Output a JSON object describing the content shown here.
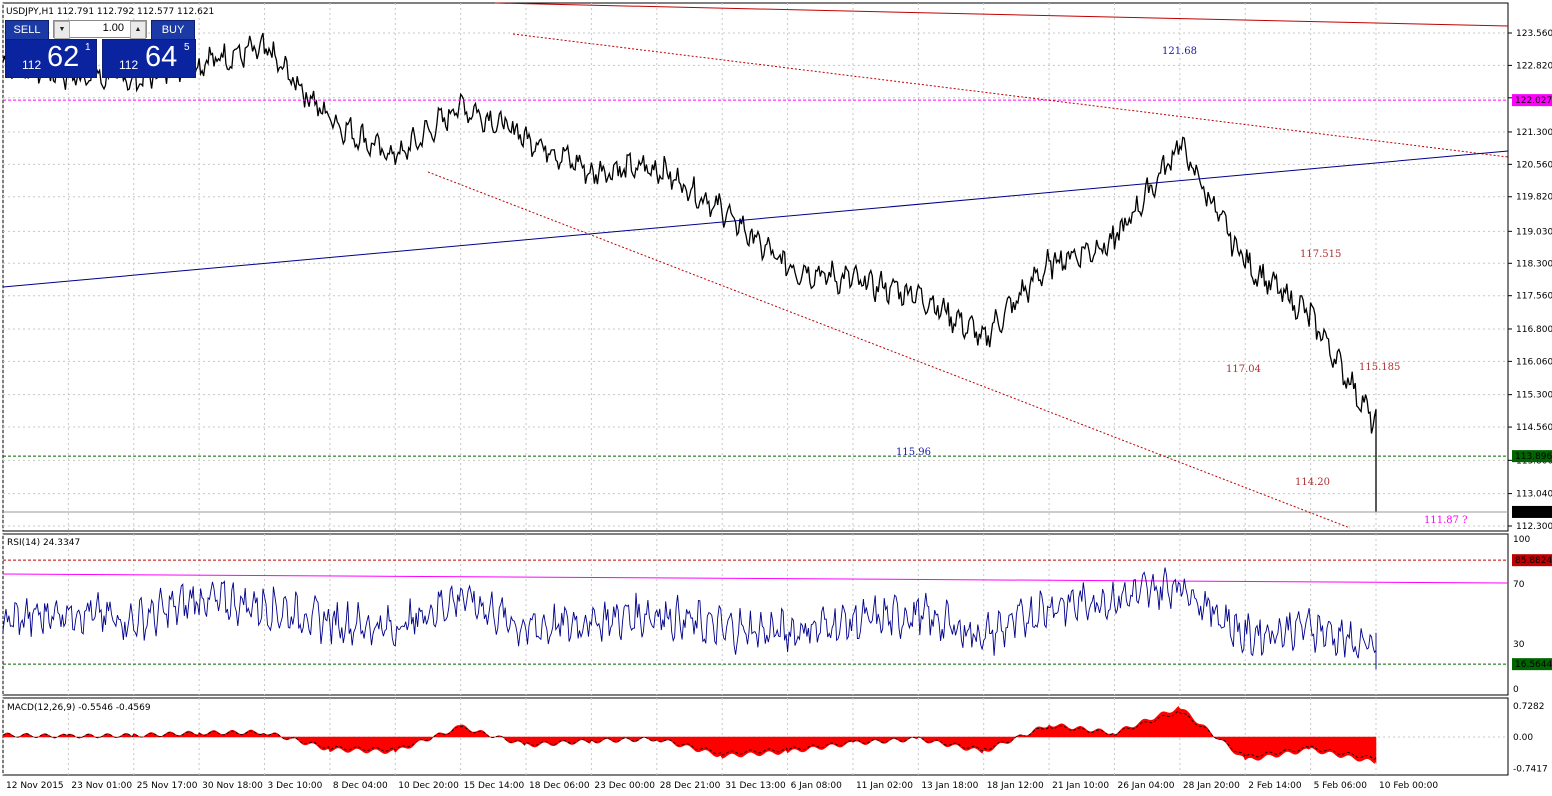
{
  "header": {
    "symbol_text": "USDJPY,H1  112.791 112.792 112.577 112.621"
  },
  "trade_panel": {
    "sell_label": "SELL",
    "buy_label": "BUY",
    "lot": "1.00",
    "sell_prefix": "112",
    "sell_main": "62",
    "sell_sup": "1",
    "buy_prefix": "112",
    "buy_main": "64",
    "buy_sup": "5"
  },
  "colors": {
    "price": "#000000",
    "rsi": "#00008b",
    "macd_hist": "#ff0000",
    "trend_red": "#c00000",
    "trend_blue": "#00008b",
    "resistance_line": "#ff00ff",
    "support_line": "#006400",
    "rsi_upper": "#c00000",
    "rsi_trend": "#ff00ff"
  },
  "price_axis": {
    "ticks": [
      "123.560",
      "122.820",
      "122.080",
      "121.300",
      "120.560",
      "119.820",
      "119.030",
      "118.300",
      "117.560",
      "116.800",
      "116.060",
      "115.300",
      "114.560",
      "113.800",
      "113.040",
      "112.300"
    ],
    "labels": [
      {
        "text": "122.027",
        "color": "#ff00ff"
      },
      {
        "text": "113.896",
        "color": "#006400"
      },
      {
        "text": "112.621",
        "color": "#000000"
      }
    ]
  },
  "annotations": [
    {
      "text": "121.68",
      "color": "#1a1aa6"
    },
    {
      "text": "117.515",
      "color": "#b03030"
    },
    {
      "text": "117.04",
      "color": "#b03030"
    },
    {
      "text": "115.185",
      "color": "#b03030"
    },
    {
      "text": "115.96",
      "color": "#1a1aa6"
    },
    {
      "text": "114.20",
      "color": "#b03030"
    },
    {
      "text": "111.87 ?",
      "color": "#ff00ff"
    }
  ],
  "rsi_panel": {
    "title": "RSI(14) 24.3347",
    "ticks": [
      "100",
      "70",
      "30",
      "0"
    ],
    "labels": [
      {
        "text": "85.8824",
        "color": "#c00000"
      },
      {
        "text": "16.5644",
        "color": "#006400"
      }
    ]
  },
  "macd_panel": {
    "title": "MACD(12,26,9) -0.5546 -0.4569",
    "ticks": [
      "0.7282",
      "0.00",
      "-0.7417"
    ]
  },
  "time_axis": {
    "labels": [
      "12 Nov 2015",
      "23 Nov 01:00",
      "25 Nov 17:00",
      "30 Nov 18:00",
      "3 Dec 10:00",
      "8 Dec 04:00",
      "10 Dec 20:00",
      "15 Dec 14:00",
      "18 Dec 06:00",
      "23 Dec 00:00",
      "28 Dec 21:00",
      "31 Dec 13:00",
      "6 Jan 08:00",
      "11 Jan 02:00",
      "13 Jan 18:00",
      "18 Jan 12:00",
      "21 Jan 10:00",
      "26 Jan 04:00",
      "28 Jan 20:00",
      "2 Feb 14:00",
      "5 Feb 06:00",
      "10 Feb 00:00"
    ]
  },
  "chart_data": {
    "type": "line",
    "title": "USDJPY,H1",
    "ylim": [
      112.3,
      123.56
    ],
    "price_x": [
      "12 Nov 2015",
      "23 Nov 01:00",
      "25 Nov 17:00",
      "30 Nov 18:00",
      "3 Dec 10:00",
      "8 Dec 04:00",
      "10 Dec 20:00",
      "15 Dec 14:00",
      "18 Dec 06:00",
      "23 Dec 00:00",
      "28 Dec 21:00",
      "31 Dec 13:00",
      "6 Jan 08:00",
      "11 Jan 02:00",
      "13 Jan 18:00",
      "18 Jan 12:00",
      "21 Jan 10:00",
      "26 Jan 04:00",
      "28 Jan 20:00",
      "2 Feb 14:00",
      "5 Feb 06:00",
      "10 Feb 00:00"
    ],
    "series": [
      {
        "values": [
          122.9,
          122.6,
          122.5,
          122.9,
          123.2,
          121.6,
          120.7,
          121.9,
          121.2,
          120.4,
          120.5,
          119.5,
          118.2,
          117.9,
          117.6,
          116.6,
          118.3,
          118.8,
          121.0,
          118.3,
          117.1,
          114.6
        ]
      }
    ],
    "price_last": 112.621,
    "rsi": {
      "period": 14,
      "last": 24.3347,
      "levels": [
        85.8824,
        16.5644
      ],
      "values": [
        45,
        52,
        45,
        60,
        55,
        45,
        40,
        62,
        40,
        45,
        50,
        40,
        38,
        45,
        50,
        35,
        55,
        60,
        70,
        35,
        42,
        25
      ]
    },
    "macd": {
      "params": [
        12,
        26,
        9
      ],
      "main_last": -0.5546,
      "signal_last": -0.4569,
      "ylim": [
        -0.7417,
        0.7282
      ],
      "hist": [
        0.05,
        0.02,
        0.04,
        0.1,
        0.12,
        -0.3,
        -0.35,
        0.25,
        -0.2,
        -0.1,
        -0.05,
        -0.45,
        -0.35,
        -0.15,
        -0.05,
        -0.35,
        0.3,
        0.1,
        0.7,
        -0.55,
        -0.3,
        -0.6
      ]
    }
  }
}
